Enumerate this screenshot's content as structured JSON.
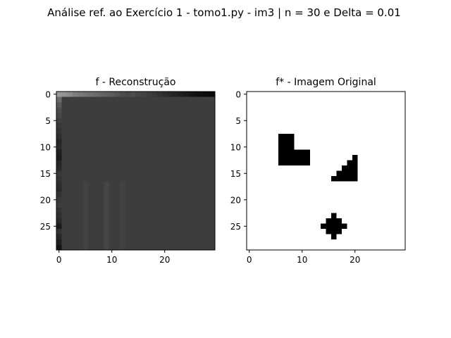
{
  "figure": {
    "suptitle": "Análise ref. ao Exercício 1 - tomo1.py - im3 | n = 30 e Delta = 0.01"
  },
  "chart_data": [
    {
      "type": "heatmap",
      "title": "f - Reconstrução",
      "colormap": "gray",
      "grid_size": [
        30,
        30
      ],
      "xticks": [
        0,
        10,
        20
      ],
      "yticks": [
        0,
        5,
        10,
        15,
        20,
        25
      ],
      "grid": false,
      "base_value": 0.24,
      "row0_values": [
        0.62,
        0.58,
        0.55,
        0.5,
        0.48,
        0.46,
        0.44,
        0.42,
        0.4,
        0.38,
        0.36,
        0.33,
        0.3,
        0.28,
        0.3,
        0.27,
        0.26,
        0.24,
        0.22,
        0.2,
        0.18,
        0.16,
        0.14,
        0.12,
        0.1,
        0.08,
        0.06,
        0.05,
        0.04,
        0.03
      ],
      "col0_values": [
        0.6,
        0.42,
        0.35,
        0.3,
        0.28,
        0.25,
        0.22,
        0.2,
        0.18,
        0.15,
        0.17,
        0.12,
        0.1,
        0.14,
        0.16,
        0.22,
        0.2,
        0.18,
        0.16,
        0.2,
        0.22,
        0.24,
        0.2,
        0.18,
        0.16,
        0.1,
        0.2,
        0.15,
        0.12,
        0.08
      ],
      "faint_vertical_bands": [
        {
          "col": 5,
          "row_from": 17,
          "row_to": 29,
          "value": 0.26
        },
        {
          "col": 9,
          "row_from": 17,
          "row_to": 29,
          "value": 0.27
        },
        {
          "col": 12,
          "row_from": 17,
          "row_to": 29,
          "value": 0.26
        }
      ]
    },
    {
      "type": "heatmap",
      "title": "f* - Imagem Original",
      "colormap": "gray",
      "grid_size": [
        30,
        30
      ],
      "xticks": [
        0,
        10,
        20
      ],
      "yticks": [
        0,
        5,
        10,
        15,
        20,
        25
      ],
      "grid": false,
      "background_value": 1,
      "black_cells": [
        [
          8,
          6
        ],
        [
          8,
          7
        ],
        [
          8,
          8
        ],
        [
          9,
          6
        ],
        [
          9,
          7
        ],
        [
          9,
          8
        ],
        [
          10,
          6
        ],
        [
          10,
          7
        ],
        [
          10,
          8
        ],
        [
          11,
          6
        ],
        [
          11,
          7
        ],
        [
          11,
          8
        ],
        [
          11,
          9
        ],
        [
          11,
          10
        ],
        [
          11,
          11
        ],
        [
          12,
          6
        ],
        [
          12,
          7
        ],
        [
          12,
          8
        ],
        [
          12,
          9
        ],
        [
          12,
          10
        ],
        [
          12,
          11
        ],
        [
          13,
          6
        ],
        [
          13,
          7
        ],
        [
          13,
          8
        ],
        [
          13,
          9
        ],
        [
          13,
          10
        ],
        [
          13,
          11
        ],
        [
          12,
          20
        ],
        [
          13,
          19
        ],
        [
          13,
          20
        ],
        [
          14,
          18
        ],
        [
          14,
          19
        ],
        [
          14,
          20
        ],
        [
          15,
          17
        ],
        [
          15,
          18
        ],
        [
          15,
          19
        ],
        [
          15,
          20
        ],
        [
          16,
          16
        ],
        [
          16,
          17
        ],
        [
          16,
          18
        ],
        [
          16,
          19
        ],
        [
          16,
          20
        ],
        [
          23,
          16
        ],
        [
          24,
          15
        ],
        [
          24,
          16
        ],
        [
          24,
          17
        ],
        [
          25,
          14
        ],
        [
          25,
          15
        ],
        [
          25,
          16
        ],
        [
          25,
          17
        ],
        [
          25,
          18
        ],
        [
          26,
          15
        ],
        [
          26,
          16
        ],
        [
          26,
          17
        ],
        [
          27,
          16
        ]
      ]
    }
  ]
}
